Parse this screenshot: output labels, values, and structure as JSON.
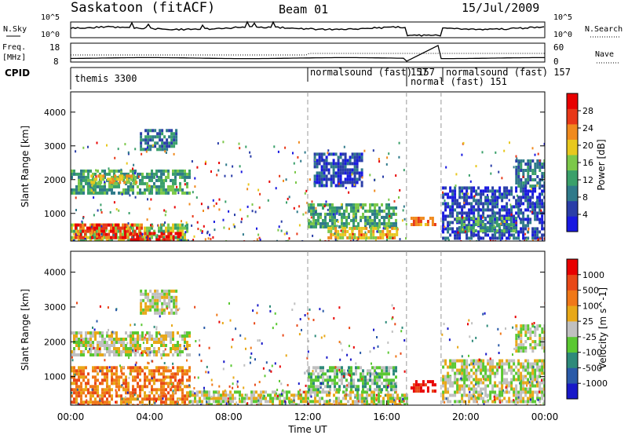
{
  "header": {
    "title": "Saskatoon (fitACF)",
    "beam": "Beam 01",
    "date": "15/Jul/2009"
  },
  "noise_panel": {
    "left_label": "N.Sky",
    "right_label": "N.Search",
    "left_ticks": [
      "10^5",
      "10^0"
    ],
    "right_ticks": [
      "10^5",
      "10^0"
    ]
  },
  "freq_panel": {
    "left_label_1": "Freq.",
    "left_label_2": "[MHz]",
    "right_label": "Nave",
    "left_ticks": [
      "18",
      "8"
    ],
    "right_ticks": [
      "60",
      "0"
    ]
  },
  "cpid": {
    "label": "CPID",
    "segments": [
      {
        "text": "themis 3300",
        "start_hour": 0.0
      },
      {
        "text": "normalsound (fast) 157",
        "start_hour": 12.0
      },
      {
        "text": "157",
        "start_hour": 17.0
      },
      {
        "text": "normal (fast) 151",
        "start_hour": 17.0
      },
      {
        "text": "normalsound (fast) 157",
        "start_hour": 18.75
      }
    ]
  },
  "x_axis": {
    "label": "Time UT",
    "ticks": [
      "00:00",
      "04:00",
      "08:00",
      "12:00",
      "16:00",
      "20:00",
      "00:00"
    ],
    "tick_hours": [
      0,
      4,
      8,
      12,
      16,
      20,
      24
    ]
  },
  "power_panel": {
    "ylabel": "Slant Range [km]",
    "yticks": [
      "4000",
      "3000",
      "2000",
      "1000"
    ],
    "ytick_values": [
      4000,
      3000,
      2000,
      1000
    ],
    "colorbar_label": "Power [dB]",
    "colorbar_ticks": [
      "28",
      "24",
      "20",
      "16",
      "12",
      "8",
      "4"
    ],
    "colors": [
      "#1818e0",
      "#2a3ea8",
      "#2f7a8a",
      "#3aa06a",
      "#7cc84a",
      "#e8c81e",
      "#f08a1e",
      "#e83818",
      "#e80000"
    ]
  },
  "velocity_panel": {
    "ylabel": "Slant Range [km]",
    "yticks": [
      "4000",
      "3000",
      "2000",
      "1000"
    ],
    "ytick_values": [
      4000,
      3000,
      2000,
      1000
    ],
    "colorbar_label": "Velocity [m s^-1]",
    "colorbar_ticks": [
      "1000",
      "500",
      "100",
      "25",
      "-25",
      "-100",
      "-500",
      "-1000"
    ],
    "colors": [
      "#1818c8",
      "#2a5aa8",
      "#2e8a7a",
      "#5ac832",
      "#c0c0c0",
      "#e8a818",
      "#f07818",
      "#e84818",
      "#e80000"
    ]
  },
  "chart_data": {
    "type": "heatmap",
    "x_range_hours": [
      0,
      24
    ],
    "y_range_km": [
      180,
      4600
    ],
    "dashed_lines_hours": [
      12.0,
      17.0,
      18.75
    ],
    "gap_hours": [
      [
        17.0,
        17.2
      ],
      [
        18.55,
        18.75
      ]
    ],
    "power_regions": [
      {
        "t0": 0.0,
        "t1": 5.9,
        "r0": 180,
        "r1": 700,
        "level": 4
      },
      {
        "t0": 0.2,
        "t1": 3.6,
        "r0": 300,
        "r1": 700,
        "level": 7
      },
      {
        "t0": 3.0,
        "t1": 5.6,
        "r0": 200,
        "r1": 450,
        "level": 8
      },
      {
        "t0": 0.0,
        "t1": 6.0,
        "r0": 1600,
        "r1": 2300,
        "level": 3
      },
      {
        "t0": 1.0,
        "t1": 3.3,
        "r0": 1950,
        "r1": 2150,
        "level": 5
      },
      {
        "t0": 3.5,
        "t1": 5.4,
        "r0": 2850,
        "r1": 3500,
        "level": 2
      },
      {
        "t0": 12.0,
        "t1": 16.5,
        "r0": 600,
        "r1": 1300,
        "level": 3
      },
      {
        "t0": 13.0,
        "t1": 16.5,
        "r0": 250,
        "r1": 600,
        "level": 5
      },
      {
        "t0": 12.3,
        "t1": 14.8,
        "r0": 1800,
        "r1": 2800,
        "level": 1
      },
      {
        "t0": 17.2,
        "t1": 18.5,
        "r0": 650,
        "r1": 900,
        "level": 6
      },
      {
        "t0": 18.8,
        "t1": 24.0,
        "r0": 300,
        "r1": 1800,
        "level": 1
      },
      {
        "t0": 19.5,
        "t1": 22.5,
        "r0": 500,
        "r1": 900,
        "level": 3
      },
      {
        "t0": 22.5,
        "t1": 24.0,
        "r0": 1800,
        "r1": 2600,
        "level": 2
      }
    ],
    "velocity_regions": [
      {
        "t0": 0.0,
        "t1": 6.0,
        "r0": 200,
        "r1": 1300,
        "level": 6
      },
      {
        "t0": 0.0,
        "t1": 6.0,
        "r0": 1600,
        "r1": 2300,
        "level": 4
      },
      {
        "t0": 3.5,
        "t1": 5.4,
        "r0": 2850,
        "r1": 3500,
        "level": 4
      },
      {
        "t0": 6.0,
        "t1": 17.0,
        "r0": 200,
        "r1": 600,
        "level": 4
      },
      {
        "t0": 12.0,
        "t1": 16.5,
        "r0": 600,
        "r1": 1300,
        "level": 3
      },
      {
        "t0": 17.2,
        "t1": 18.5,
        "r0": 550,
        "r1": 900,
        "level": 8
      },
      {
        "t0": 18.8,
        "t1": 24.0,
        "r0": 300,
        "r1": 1500,
        "level": 4
      },
      {
        "t0": 22.5,
        "t1": 24.0,
        "r0": 1700,
        "r1": 2500,
        "level": 4
      }
    ]
  }
}
